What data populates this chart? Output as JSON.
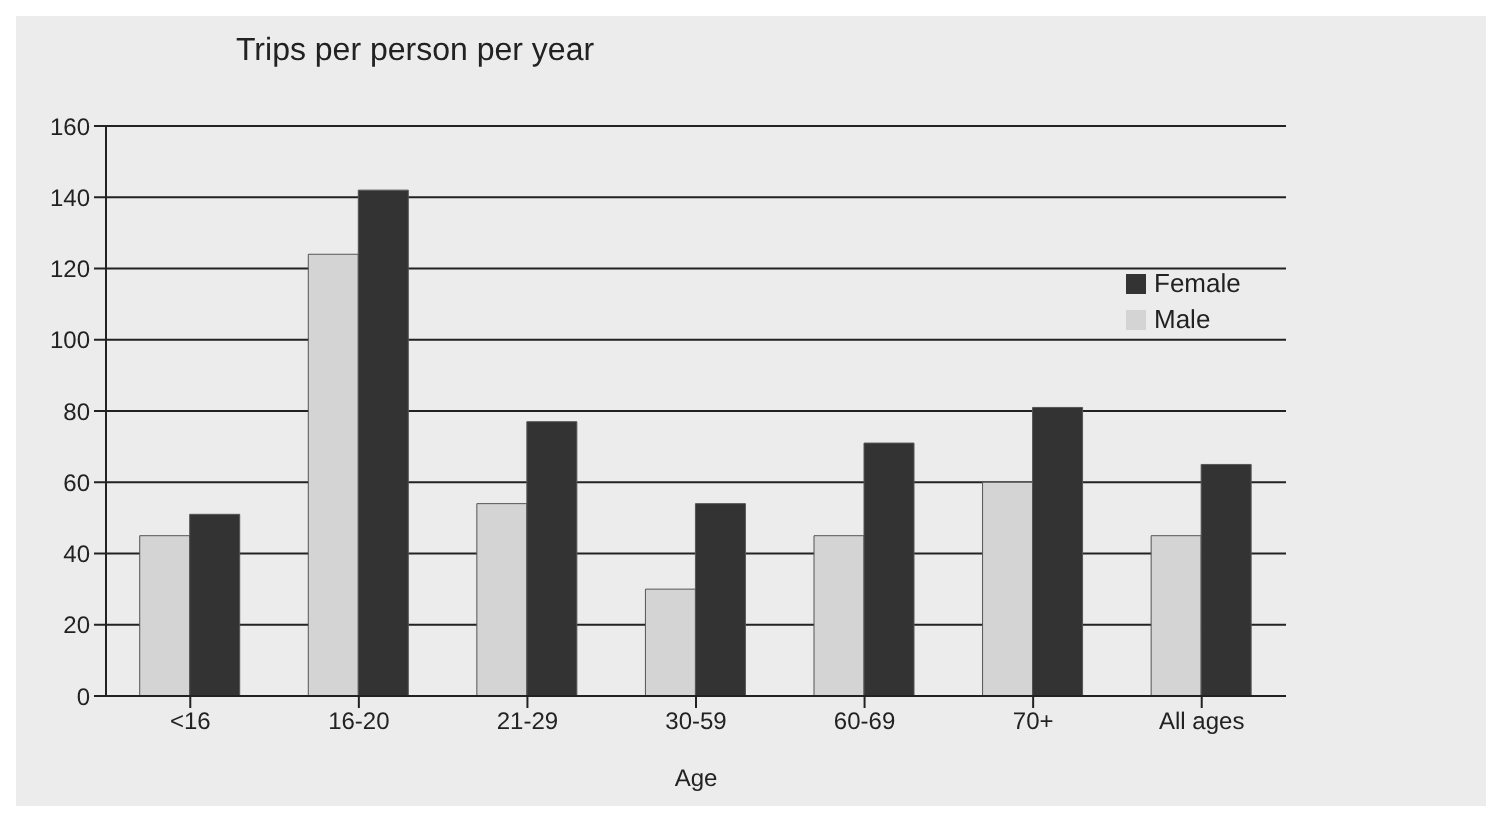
{
  "chart_data": {
    "type": "bar",
    "ylabel": "Trips per person per year",
    "xlabel": "Age",
    "categories": [
      "<16",
      "16-20",
      "21-29",
      "30-59",
      "60-69",
      "70+",
      "All ages"
    ],
    "series": [
      {
        "name": "Male",
        "color": "#d4d4d4",
        "values": [
          45,
          124,
          54,
          30,
          45,
          60,
          45
        ]
      },
      {
        "name": "Female",
        "color": "#333333",
        "values": [
          51,
          142,
          77,
          54,
          71,
          81,
          65
        ]
      }
    ],
    "ylim": [
      0,
      160
    ],
    "yticks": [
      0,
      20,
      40,
      60,
      80,
      100,
      120,
      140,
      160
    ],
    "grid": "y",
    "legend": "top right"
  }
}
